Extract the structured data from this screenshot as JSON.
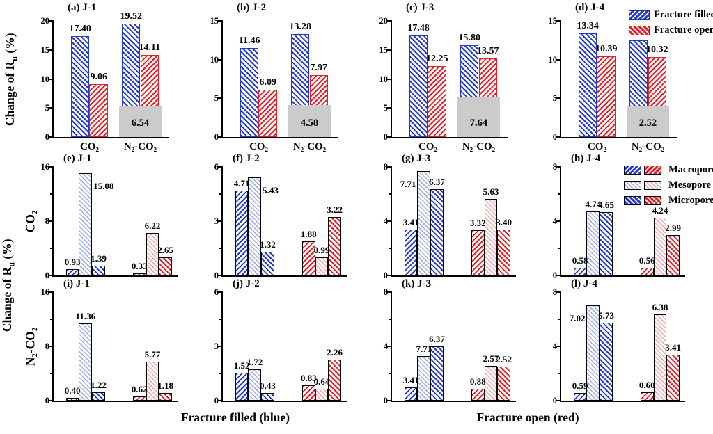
{
  "colors": {
    "fracture_filled_blue": "#2238d4",
    "fracture_open_red": "#e81c24",
    "mesopore_light_blue": "#9fb0ea",
    "mesopore_light_red": "#f2a9ad",
    "overlap_gray": "#cbcbcb"
  },
  "labels": {
    "ylabel_prefix": "Change of R",
    "ylabel_sub": "u",
    "ylabel_suffix": " (%)",
    "row_co2": "CO₂",
    "row_n2co2": "N₂-CO₂",
    "xlabel_left": "Fracture filled (blue)",
    "xlabel_right": "Fracture open (red)"
  },
  "legend_fracture": [
    {
      "label": "Fracture filled",
      "color": "#2238d4"
    },
    {
      "label": "Fracture open",
      "color": "#e81c24"
    }
  ],
  "legend_pores": [
    {
      "label": "Macropore",
      "hatch": "forward-diagonal"
    },
    {
      "label": "Mesopore",
      "hatch": "crosshatch"
    },
    {
      "label": "Micropore",
      "hatch": "back-diagonal"
    }
  ],
  "chart_data": [
    {
      "type": "bar",
      "kind": "pair",
      "panel": "(a) J-1",
      "categories": [
        "CO₂",
        "N₂-CO₂"
      ],
      "ylim": 20,
      "yticks": [
        0,
        5,
        10,
        15,
        20
      ],
      "series": [
        {
          "name": "Fracture filled",
          "values": [
            17.4,
            19.52
          ]
        },
        {
          "name": "Fracture open",
          "values": [
            9.06,
            14.11
          ]
        }
      ],
      "gray_box": {
        "category": "N₂-CO₂",
        "value": 6.54,
        "top_at": 5.3
      }
    },
    {
      "type": "bar",
      "kind": "pair",
      "panel": "(b) J-2",
      "categories": [
        "CO₂",
        "N₂-CO₂"
      ],
      "ylim": 15,
      "yticks": [
        0,
        5,
        10,
        15
      ],
      "series": [
        {
          "name": "Fracture filled",
          "values": [
            11.46,
            13.28
          ]
        },
        {
          "name": "Fracture open",
          "values": [
            6.09,
            7.97
          ]
        }
      ],
      "gray_box": {
        "category": "N₂-CO₂",
        "value": 4.58,
        "top_at": 4.1
      }
    },
    {
      "type": "bar",
      "kind": "pair",
      "panel": "(c) J-3",
      "categories": [
        "CO₂",
        "N₂-CO₂"
      ],
      "ylim": 20,
      "yticks": [
        0,
        5,
        10,
        15,
        20
      ],
      "series": [
        {
          "name": "Fracture filled",
          "values": [
            17.48,
            15.8
          ]
        },
        {
          "name": "Fracture open",
          "values": [
            12.25,
            13.57
          ]
        }
      ],
      "gray_box": {
        "category": "N₂-CO₂",
        "value": 7.64,
        "top_at": 6.9
      }
    },
    {
      "type": "bar",
      "kind": "pair",
      "panel": "(d) J-4",
      "categories": [
        "CO₂",
        "N₂-CO₂"
      ],
      "ylim": 15,
      "yticks": [
        0,
        5,
        10,
        15
      ],
      "series": [
        {
          "name": "Fracture filled",
          "values": [
            13.34,
            12.49
          ]
        },
        {
          "name": "Fracture open",
          "values": [
            10.39,
            10.32
          ]
        }
      ],
      "gray_box": {
        "category": "N₂-CO₂",
        "value": 2.52,
        "top_at": 4.0
      }
    },
    {
      "type": "bar",
      "kind": "pores",
      "panel": "(e) J-1",
      "row": "CO₂",
      "ylim": 16,
      "yticks": [
        0,
        8,
        16
      ],
      "pores": [
        "Macropore",
        "Mesopore",
        "Micropore"
      ],
      "filled": [
        0.93,
        15.08,
        1.39
      ],
      "open": [
        0.33,
        6.22,
        2.65
      ],
      "filled_sides": [
        "",
        "right",
        ""
      ]
    },
    {
      "type": "bar",
      "kind": "pores",
      "panel": "(f) J-2",
      "row": "CO₂",
      "ylim": 6,
      "yticks": [
        0,
        3,
        6
      ],
      "pores": [
        "Macropore",
        "Mesopore",
        "Micropore"
      ],
      "filled": [
        4.71,
        5.43,
        1.32
      ],
      "open": [
        1.88,
        0.99,
        3.22
      ],
      "filled_sides": [
        "",
        "right",
        ""
      ]
    },
    {
      "type": "bar",
      "kind": "pores",
      "panel": "(g) J-3",
      "row": "CO₂",
      "ylim": 8,
      "yticks": [
        0,
        4,
        8
      ],
      "pores": [
        "Macropore",
        "Mesopore",
        "Micropore"
      ],
      "filled": [
        3.41,
        7.71,
        6.37
      ],
      "open": [
        3.32,
        5.63,
        3.4
      ],
      "filled_sides": [
        "",
        "left",
        ""
      ]
    },
    {
      "type": "bar",
      "kind": "pores",
      "panel": "(h) J-4",
      "row": "CO₂",
      "ylim": 8,
      "yticks": [
        0,
        4,
        8
      ],
      "pores": [
        "Macropore",
        "Mesopore",
        "Micropore"
      ],
      "filled": [
        0.58,
        4.74,
        4.65
      ],
      "open": [
        0.56,
        4.24,
        2.99
      ]
    },
    {
      "type": "bar",
      "kind": "pores",
      "panel": "(i) J-1",
      "row": "N₂-CO₂",
      "ylim": 16,
      "yticks": [
        0,
        8,
        16
      ],
      "pores": [
        "Macropore",
        "Mesopore",
        "Micropore"
      ],
      "filled": [
        0.4,
        11.36,
        1.22
      ],
      "open": [
        0.62,
        5.77,
        1.18
      ]
    },
    {
      "type": "bar",
      "kind": "pores",
      "panel": "(j) J-2",
      "row": "N₂-CO₂",
      "ylim": 6,
      "yticks": [
        0,
        3,
        6
      ],
      "pores": [
        "Macropore",
        "Mesopore",
        "Micropore"
      ],
      "filled": [
        1.52,
        1.72,
        0.43
      ],
      "open": [
        0.83,
        0.64,
        2.26
      ]
    },
    {
      "type": "bar",
      "kind": "pores",
      "panel": "(k) J-3",
      "row": "N₂-CO₂",
      "ylim": 8,
      "yticks": [
        0,
        4,
        8
      ],
      "pores": [
        "Macropore",
        "Mesopore",
        "Micropore"
      ],
      "filled": [
        3.41,
        7.71,
        6.37
      ],
      "open": [
        0.88,
        2.57,
        2.52
      ],
      "filled_bar_heights": [
        1.0,
        3.3,
        4.0
      ]
    },
    {
      "type": "bar",
      "kind": "pores",
      "panel": "(l) J-4",
      "row": "N₂-CO₂",
      "ylim": 8,
      "yticks": [
        0,
        4,
        8
      ],
      "pores": [
        "Macropore",
        "Mesopore",
        "Micropore"
      ],
      "filled": [
        0.59,
        7.02,
        5.73
      ],
      "open": [
        0.6,
        6.38,
        3.41
      ],
      "filled_sides": [
        "",
        "left",
        ""
      ]
    }
  ]
}
